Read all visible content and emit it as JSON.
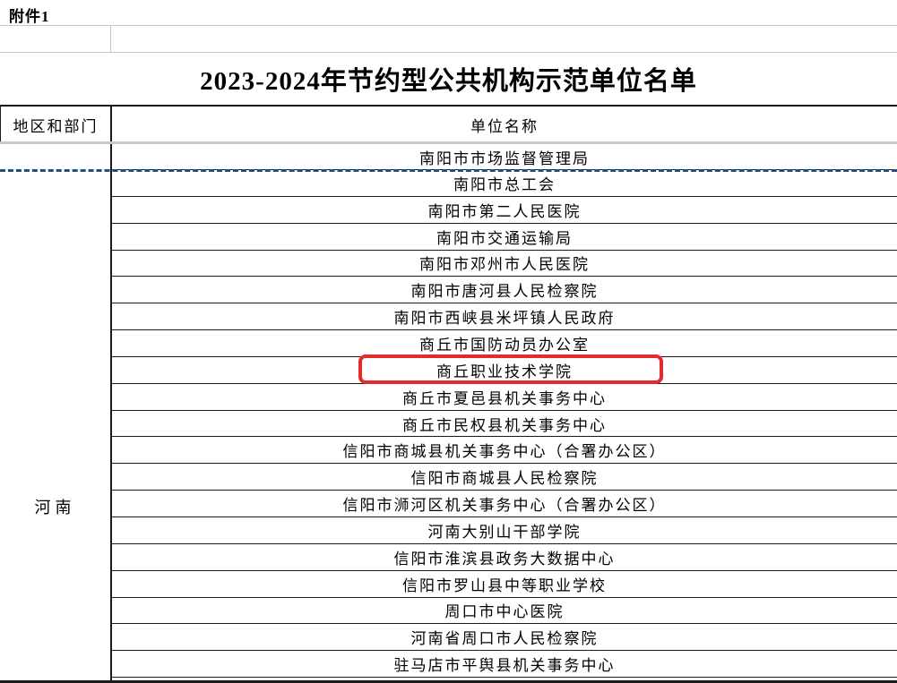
{
  "page": {
    "attachment_label": "附件1"
  },
  "title": "2023-2024年节约型公共机构示范单位名单",
  "table": {
    "region_column_header": "地区和部门",
    "unit_column_header": "单位名称",
    "region_label": "河南",
    "rows": [
      "南阳市市场监督管理局",
      "南阳市总工会",
      "南阳市第二人民医院",
      "南阳市交通运输局",
      "南阳市邓州市人民医院",
      "南阳市唐河县人民检察院",
      "南阳市西峡县米坪镇人民政府",
      "商丘市国防动员办公室",
      "商丘职业技术学院",
      "商丘市夏邑县机关事务中心",
      "商丘市民权县机关事务中心",
      "信阳市商城县机关事务中心（合署办公区）",
      "信阳市商城县人民检察院",
      "信阳市浉河区机关事务中心（合署办公区）",
      "河南大别山干部学院",
      "信阳市淮滨县政务大数据中心",
      "信阳市罗山县中等职业学校",
      "周口市中心医院",
      "河南省周口市人民检察院",
      "驻马店市平舆县机关事务中心"
    ],
    "highlight": {
      "row_index": 8,
      "highlighted_row_text": "商丘职业技术学院"
    }
  },
  "colors": {
    "row_border": "#1a1a1a",
    "gridline_gray": "#c6c6c6",
    "freeze_divider_gray": "#c9c9c9",
    "page_break_blue": "#1f5081",
    "highlight_red": "#e32b2b"
  }
}
